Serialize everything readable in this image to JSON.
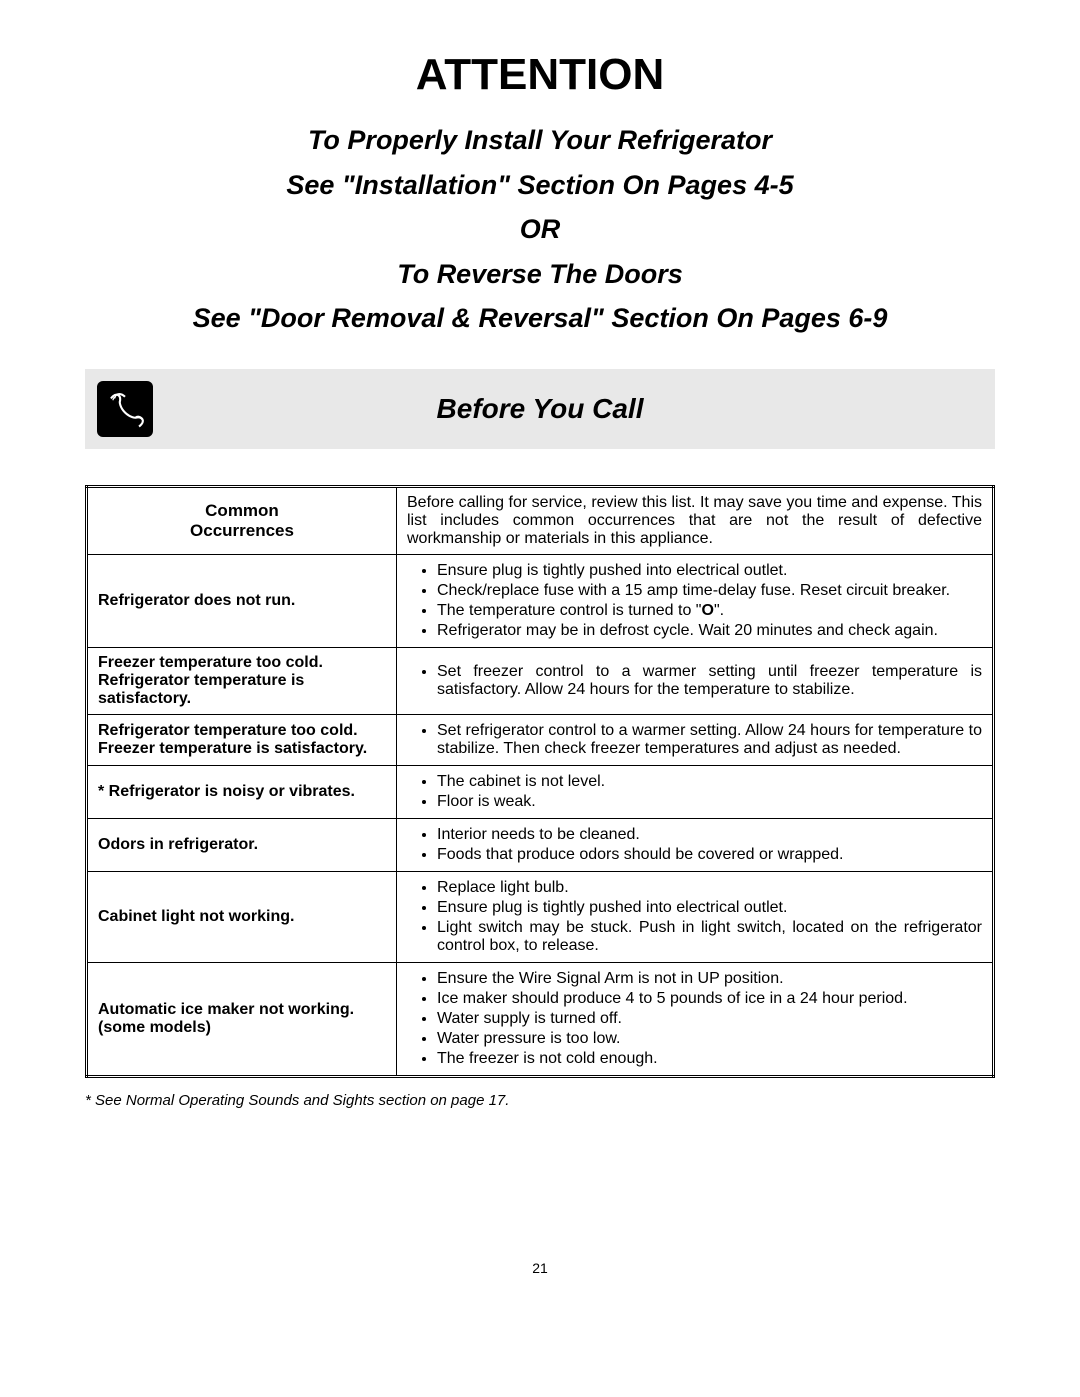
{
  "title": "ATTENTION",
  "subtitle_lines": [
    "To Properly Install Your Refrigerator",
    "See  \"Installation\" Section On Pages 4-5",
    "OR",
    "To Reverse The Doors",
    "See  \"Door Removal & Reversal\" Section On Pages 6-9"
  ],
  "banner_title": "Before You Call",
  "table": {
    "header_left": "Common Occurrences",
    "header_right": "Before calling for service, review this list. It may save you time and expense. This list includes common occurrences that are not the result of defective workmanship or materials in this appliance.",
    "rows": [
      {
        "left": "Refrigerator does not run.",
        "items": [
          {
            "t": "Ensure plug is tightly pushed into electrical outlet."
          },
          {
            "t": "Check/replace fuse with a 15 amp time-delay fuse. Reset circuit breaker.",
            "just": true
          },
          {
            "html": "The temperature control is turned to \"<b>O</b>\"."
          },
          {
            "t": "Refrigerator may be in defrost cycle. Wait 20 minutes and check again."
          }
        ]
      },
      {
        "left": "Freezer temperature too cold. Refrigerator temperature is satisfactory.",
        "items": [
          {
            "t": "Set freezer control to a warmer setting until freezer temperature is satisfactory. Allow 24 hours for the temperature to stabilize.",
            "just": true
          }
        ]
      },
      {
        "left": "Refrigerator temperature too cold. Freezer temperature is satisfactory.",
        "items": [
          {
            "t": "Set refrigerator control to a warmer setting. Allow 24 hours for temperature to stabilize. Then check freezer temperatures and adjust as needed.",
            "just": true
          }
        ]
      },
      {
        "left": "* Refrigerator is noisy or  vibrates.",
        "items": [
          {
            "t": "The cabinet is not level."
          },
          {
            "t": "Floor is weak."
          }
        ]
      },
      {
        "left": "Odors in refrigerator.",
        "items": [
          {
            "t": "Interior needs to be cleaned."
          },
          {
            "t": "Foods that produce odors should be covered or wrapped."
          }
        ]
      },
      {
        "left": "Cabinet light not working.",
        "items": [
          {
            "t": "Replace light bulb."
          },
          {
            "t": "Ensure plug is tightly pushed into electrical outlet."
          },
          {
            "t": "Light switch may be stuck. Push in light switch, located on the refrigerator control box, to release.",
            "just": true
          }
        ]
      },
      {
        "left": "Automatic ice maker not working. (some models)",
        "items": [
          {
            "t": "Ensure the Wire Signal Arm is not in UP position."
          },
          {
            "t": "Ice maker should produce 4 to 5  pounds of ice in a 24 hour period."
          },
          {
            "t": "Water supply is turned off."
          },
          {
            "t": "Water pressure is too low."
          },
          {
            "t": "The freezer is not cold enough."
          }
        ]
      }
    ]
  },
  "footnote": "* See Normal Operating Sounds and Sights section on page 17.",
  "page_number": "21",
  "colors": {
    "banner_bg": "#e8e8e8",
    "icon_bg": "#000000",
    "text": "#000000"
  }
}
